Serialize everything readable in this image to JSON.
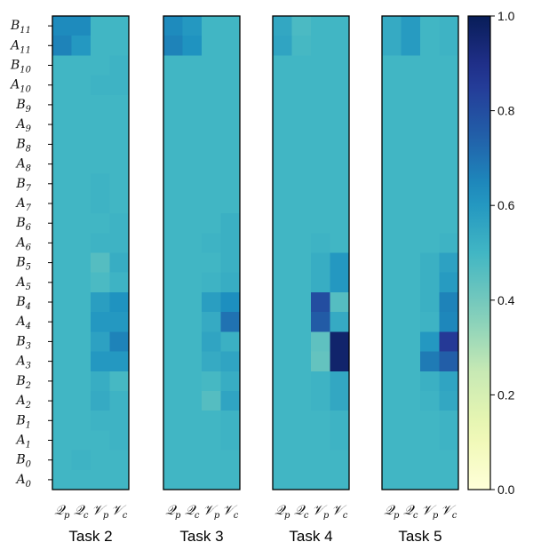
{
  "chart_data": {
    "type": "heatmap",
    "colormap": "YlGnBu",
    "vmin": 0.0,
    "vmax": 1.0,
    "row_labels": [
      {
        "base": "B",
        "sub": "11"
      },
      {
        "base": "A",
        "sub": "11"
      },
      {
        "base": "B",
        "sub": "10"
      },
      {
        "base": "A",
        "sub": "10"
      },
      {
        "base": "B",
        "sub": "9"
      },
      {
        "base": "A",
        "sub": "9"
      },
      {
        "base": "B",
        "sub": "8"
      },
      {
        "base": "A",
        "sub": "8"
      },
      {
        "base": "B",
        "sub": "7"
      },
      {
        "base": "A",
        "sub": "7"
      },
      {
        "base": "B",
        "sub": "6"
      },
      {
        "base": "A",
        "sub": "6"
      },
      {
        "base": "B",
        "sub": "5"
      },
      {
        "base": "A",
        "sub": "5"
      },
      {
        "base": "B",
        "sub": "4"
      },
      {
        "base": "A",
        "sub": "4"
      },
      {
        "base": "B",
        "sub": "3"
      },
      {
        "base": "A",
        "sub": "3"
      },
      {
        "base": "B",
        "sub": "2"
      },
      {
        "base": "A",
        "sub": "2"
      },
      {
        "base": "B",
        "sub": "1"
      },
      {
        "base": "A",
        "sub": "1"
      },
      {
        "base": "B",
        "sub": "0"
      },
      {
        "base": "A",
        "sub": "0"
      }
    ],
    "col_labels": [
      {
        "base": "𝒬",
        "sub": "p"
      },
      {
        "base": "𝒬",
        "sub": "c"
      },
      {
        "base": "𝒱",
        "sub": "p"
      },
      {
        "base": "𝒱",
        "sub": "c"
      }
    ],
    "colorbar_ticks": [
      "0.0",
      "0.2",
      "0.4",
      "0.6",
      "0.8",
      "1.0"
    ],
    "panels": [
      {
        "title": "Task 2",
        "values": [
          [
            0.64,
            0.64,
            0.5,
            0.5
          ],
          [
            0.66,
            0.6,
            0.5,
            0.5
          ],
          [
            0.5,
            0.5,
            0.5,
            0.51
          ],
          [
            0.5,
            0.5,
            0.51,
            0.51
          ],
          [
            0.5,
            0.5,
            0.5,
            0.5
          ],
          [
            0.5,
            0.5,
            0.5,
            0.5
          ],
          [
            0.5,
            0.5,
            0.5,
            0.5
          ],
          [
            0.5,
            0.5,
            0.5,
            0.5
          ],
          [
            0.5,
            0.5,
            0.51,
            0.5
          ],
          [
            0.5,
            0.5,
            0.51,
            0.5
          ],
          [
            0.5,
            0.5,
            0.5,
            0.51
          ],
          [
            0.5,
            0.5,
            0.51,
            0.51
          ],
          [
            0.5,
            0.5,
            0.46,
            0.53
          ],
          [
            0.5,
            0.5,
            0.48,
            0.51
          ],
          [
            0.5,
            0.5,
            0.58,
            0.62
          ],
          [
            0.5,
            0.5,
            0.6,
            0.6
          ],
          [
            0.5,
            0.5,
            0.57,
            0.66
          ],
          [
            0.5,
            0.5,
            0.6,
            0.6
          ],
          [
            0.5,
            0.5,
            0.53,
            0.49
          ],
          [
            0.5,
            0.5,
            0.54,
            0.51
          ],
          [
            0.5,
            0.5,
            0.51,
            0.51
          ],
          [
            0.5,
            0.5,
            0.5,
            0.51
          ],
          [
            0.5,
            0.51,
            0.5,
            0.5
          ],
          [
            0.5,
            0.5,
            0.5,
            0.5
          ]
        ]
      },
      {
        "title": "Task 3",
        "values": [
          [
            0.64,
            0.6,
            0.5,
            0.5
          ],
          [
            0.66,
            0.62,
            0.5,
            0.5
          ],
          [
            0.5,
            0.5,
            0.5,
            0.5
          ],
          [
            0.5,
            0.5,
            0.5,
            0.5
          ],
          [
            0.5,
            0.5,
            0.5,
            0.5
          ],
          [
            0.5,
            0.5,
            0.5,
            0.5
          ],
          [
            0.5,
            0.5,
            0.5,
            0.5
          ],
          [
            0.5,
            0.5,
            0.5,
            0.5
          ],
          [
            0.5,
            0.5,
            0.5,
            0.5
          ],
          [
            0.5,
            0.5,
            0.5,
            0.5
          ],
          [
            0.5,
            0.5,
            0.5,
            0.52
          ],
          [
            0.5,
            0.5,
            0.51,
            0.52
          ],
          [
            0.5,
            0.5,
            0.5,
            0.52
          ],
          [
            0.5,
            0.5,
            0.51,
            0.53
          ],
          [
            0.5,
            0.5,
            0.58,
            0.63
          ],
          [
            0.5,
            0.5,
            0.54,
            0.7
          ],
          [
            0.5,
            0.5,
            0.56,
            0.52
          ],
          [
            0.5,
            0.5,
            0.54,
            0.56
          ],
          [
            0.5,
            0.5,
            0.49,
            0.53
          ],
          [
            0.5,
            0.5,
            0.46,
            0.56
          ],
          [
            0.5,
            0.5,
            0.5,
            0.51
          ],
          [
            0.5,
            0.5,
            0.5,
            0.51
          ],
          [
            0.5,
            0.5,
            0.5,
            0.5
          ],
          [
            0.5,
            0.5,
            0.5,
            0.5
          ]
        ]
      },
      {
        "title": "Task 4",
        "values": [
          [
            0.55,
            0.48,
            0.5,
            0.5
          ],
          [
            0.56,
            0.49,
            0.5,
            0.5
          ],
          [
            0.5,
            0.5,
            0.5,
            0.5
          ],
          [
            0.5,
            0.5,
            0.5,
            0.5
          ],
          [
            0.5,
            0.5,
            0.5,
            0.5
          ],
          [
            0.5,
            0.5,
            0.5,
            0.5
          ],
          [
            0.5,
            0.5,
            0.5,
            0.5
          ],
          [
            0.5,
            0.5,
            0.5,
            0.5
          ],
          [
            0.5,
            0.5,
            0.5,
            0.5
          ],
          [
            0.5,
            0.5,
            0.5,
            0.5
          ],
          [
            0.5,
            0.5,
            0.5,
            0.5
          ],
          [
            0.5,
            0.5,
            0.51,
            0.5
          ],
          [
            0.5,
            0.5,
            0.53,
            0.6
          ],
          [
            0.5,
            0.5,
            0.53,
            0.6
          ],
          [
            0.5,
            0.5,
            0.8,
            0.46
          ],
          [
            0.5,
            0.5,
            0.76,
            0.54
          ],
          [
            0.5,
            0.5,
            0.44,
            0.96
          ],
          [
            0.5,
            0.5,
            0.43,
            0.96
          ],
          [
            0.5,
            0.5,
            0.51,
            0.55
          ],
          [
            0.5,
            0.5,
            0.51,
            0.55
          ],
          [
            0.5,
            0.5,
            0.5,
            0.51
          ],
          [
            0.5,
            0.5,
            0.5,
            0.51
          ],
          [
            0.5,
            0.5,
            0.5,
            0.5
          ],
          [
            0.5,
            0.5,
            0.5,
            0.5
          ]
        ]
      },
      {
        "title": "Task 5",
        "values": [
          [
            0.54,
            0.59,
            0.5,
            0.51
          ],
          [
            0.54,
            0.59,
            0.5,
            0.51
          ],
          [
            0.5,
            0.5,
            0.5,
            0.5
          ],
          [
            0.5,
            0.5,
            0.5,
            0.5
          ],
          [
            0.5,
            0.5,
            0.5,
            0.5
          ],
          [
            0.5,
            0.5,
            0.5,
            0.5
          ],
          [
            0.5,
            0.5,
            0.5,
            0.5
          ],
          [
            0.5,
            0.5,
            0.5,
            0.5
          ],
          [
            0.5,
            0.5,
            0.5,
            0.5
          ],
          [
            0.5,
            0.5,
            0.5,
            0.5
          ],
          [
            0.5,
            0.5,
            0.5,
            0.5
          ],
          [
            0.5,
            0.5,
            0.5,
            0.51
          ],
          [
            0.5,
            0.5,
            0.52,
            0.57
          ],
          [
            0.5,
            0.5,
            0.52,
            0.59
          ],
          [
            0.5,
            0.5,
            0.52,
            0.66
          ],
          [
            0.5,
            0.5,
            0.51,
            0.65
          ],
          [
            0.5,
            0.5,
            0.6,
            0.86
          ],
          [
            0.5,
            0.5,
            0.68,
            0.75
          ],
          [
            0.5,
            0.5,
            0.52,
            0.56
          ],
          [
            0.5,
            0.5,
            0.51,
            0.55
          ],
          [
            0.5,
            0.5,
            0.5,
            0.51
          ],
          [
            0.5,
            0.5,
            0.5,
            0.51
          ],
          [
            0.5,
            0.5,
            0.5,
            0.5
          ],
          [
            0.5,
            0.5,
            0.5,
            0.5
          ]
        ]
      }
    ]
  }
}
